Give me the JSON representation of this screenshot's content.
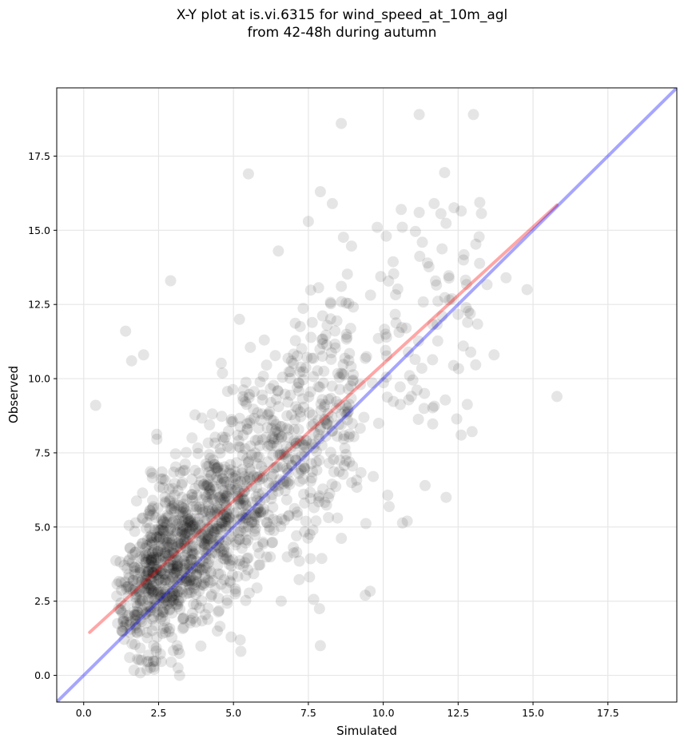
{
  "chart_data": {
    "type": "scatter",
    "title": "X-Y plot at is.vi.6315 for wind_speed_at_10m_agl",
    "subtitle": "from 42-48h during autumn",
    "xlabel": "Simulated",
    "ylabel": "Observed",
    "xlim": [
      -0.9,
      19.8
    ],
    "ylim": [
      -0.9,
      19.8
    ],
    "xticks": [
      0.0,
      2.5,
      5.0,
      7.5,
      10.0,
      12.5,
      15.0,
      17.5
    ],
    "yticks": [
      0.0,
      2.5,
      5.0,
      7.5,
      10.0,
      12.5,
      15.0,
      17.5
    ],
    "xtick_labels": [
      "0.0",
      "2.5",
      "5.0",
      "7.5",
      "10.0",
      "12.5",
      "15.0",
      "17.5"
    ],
    "ytick_labels": [
      "0.0",
      "2.5",
      "5.0",
      "7.5",
      "10.0",
      "12.5",
      "15.0",
      "17.5"
    ],
    "grid": true,
    "point_color": "#000000",
    "point_opacity": 0.1,
    "approx_point_count": 1500,
    "cloud_model": {
      "intercept": 1.2,
      "slope": 0.93,
      "noise_sd": 1.8,
      "x_min": 0.2,
      "x_max": 15.8
    },
    "outliers": [
      [
        5.5,
        16.9
      ],
      [
        8.6,
        18.6
      ],
      [
        11.2,
        18.9
      ],
      [
        7.9,
        16.3
      ],
      [
        8.3,
        15.9
      ],
      [
        11.7,
        15.9
      ],
      [
        10.6,
        15.7
      ],
      [
        11.2,
        15.6
      ],
      [
        7.5,
        15.3
      ],
      [
        9.8,
        15.1
      ],
      [
        10.1,
        14.8
      ],
      [
        0.4,
        9.1
      ],
      [
        2.9,
        13.3
      ],
      [
        1.4,
        11.6
      ],
      [
        14.1,
        13.4
      ],
      [
        14.8,
        13.0
      ],
      [
        15.8,
        9.4
      ],
      [
        13.7,
        10.8
      ],
      [
        12.6,
        8.1
      ],
      [
        12.1,
        6.0
      ],
      [
        10.8,
        5.2
      ],
      [
        7.9,
        1.0
      ],
      [
        3.2,
        0.0
      ],
      [
        9.4,
        2.7
      ],
      [
        1.6,
        10.6
      ],
      [
        2.0,
        10.8
      ],
      [
        6.5,
        14.3
      ],
      [
        5.2,
        12.0
      ]
    ],
    "lines": [
      {
        "name": "",
        "color": "#ff0000",
        "opacity": 0.35,
        "x": [
          0.2,
          15.8
        ],
        "y": [
          1.45,
          15.85
        ]
      },
      {
        "name": "",
        "color": "#0000ff",
        "opacity": 0.35,
        "x": [
          -0.9,
          19.8
        ],
        "y": [
          -0.9,
          19.8
        ]
      }
    ]
  }
}
